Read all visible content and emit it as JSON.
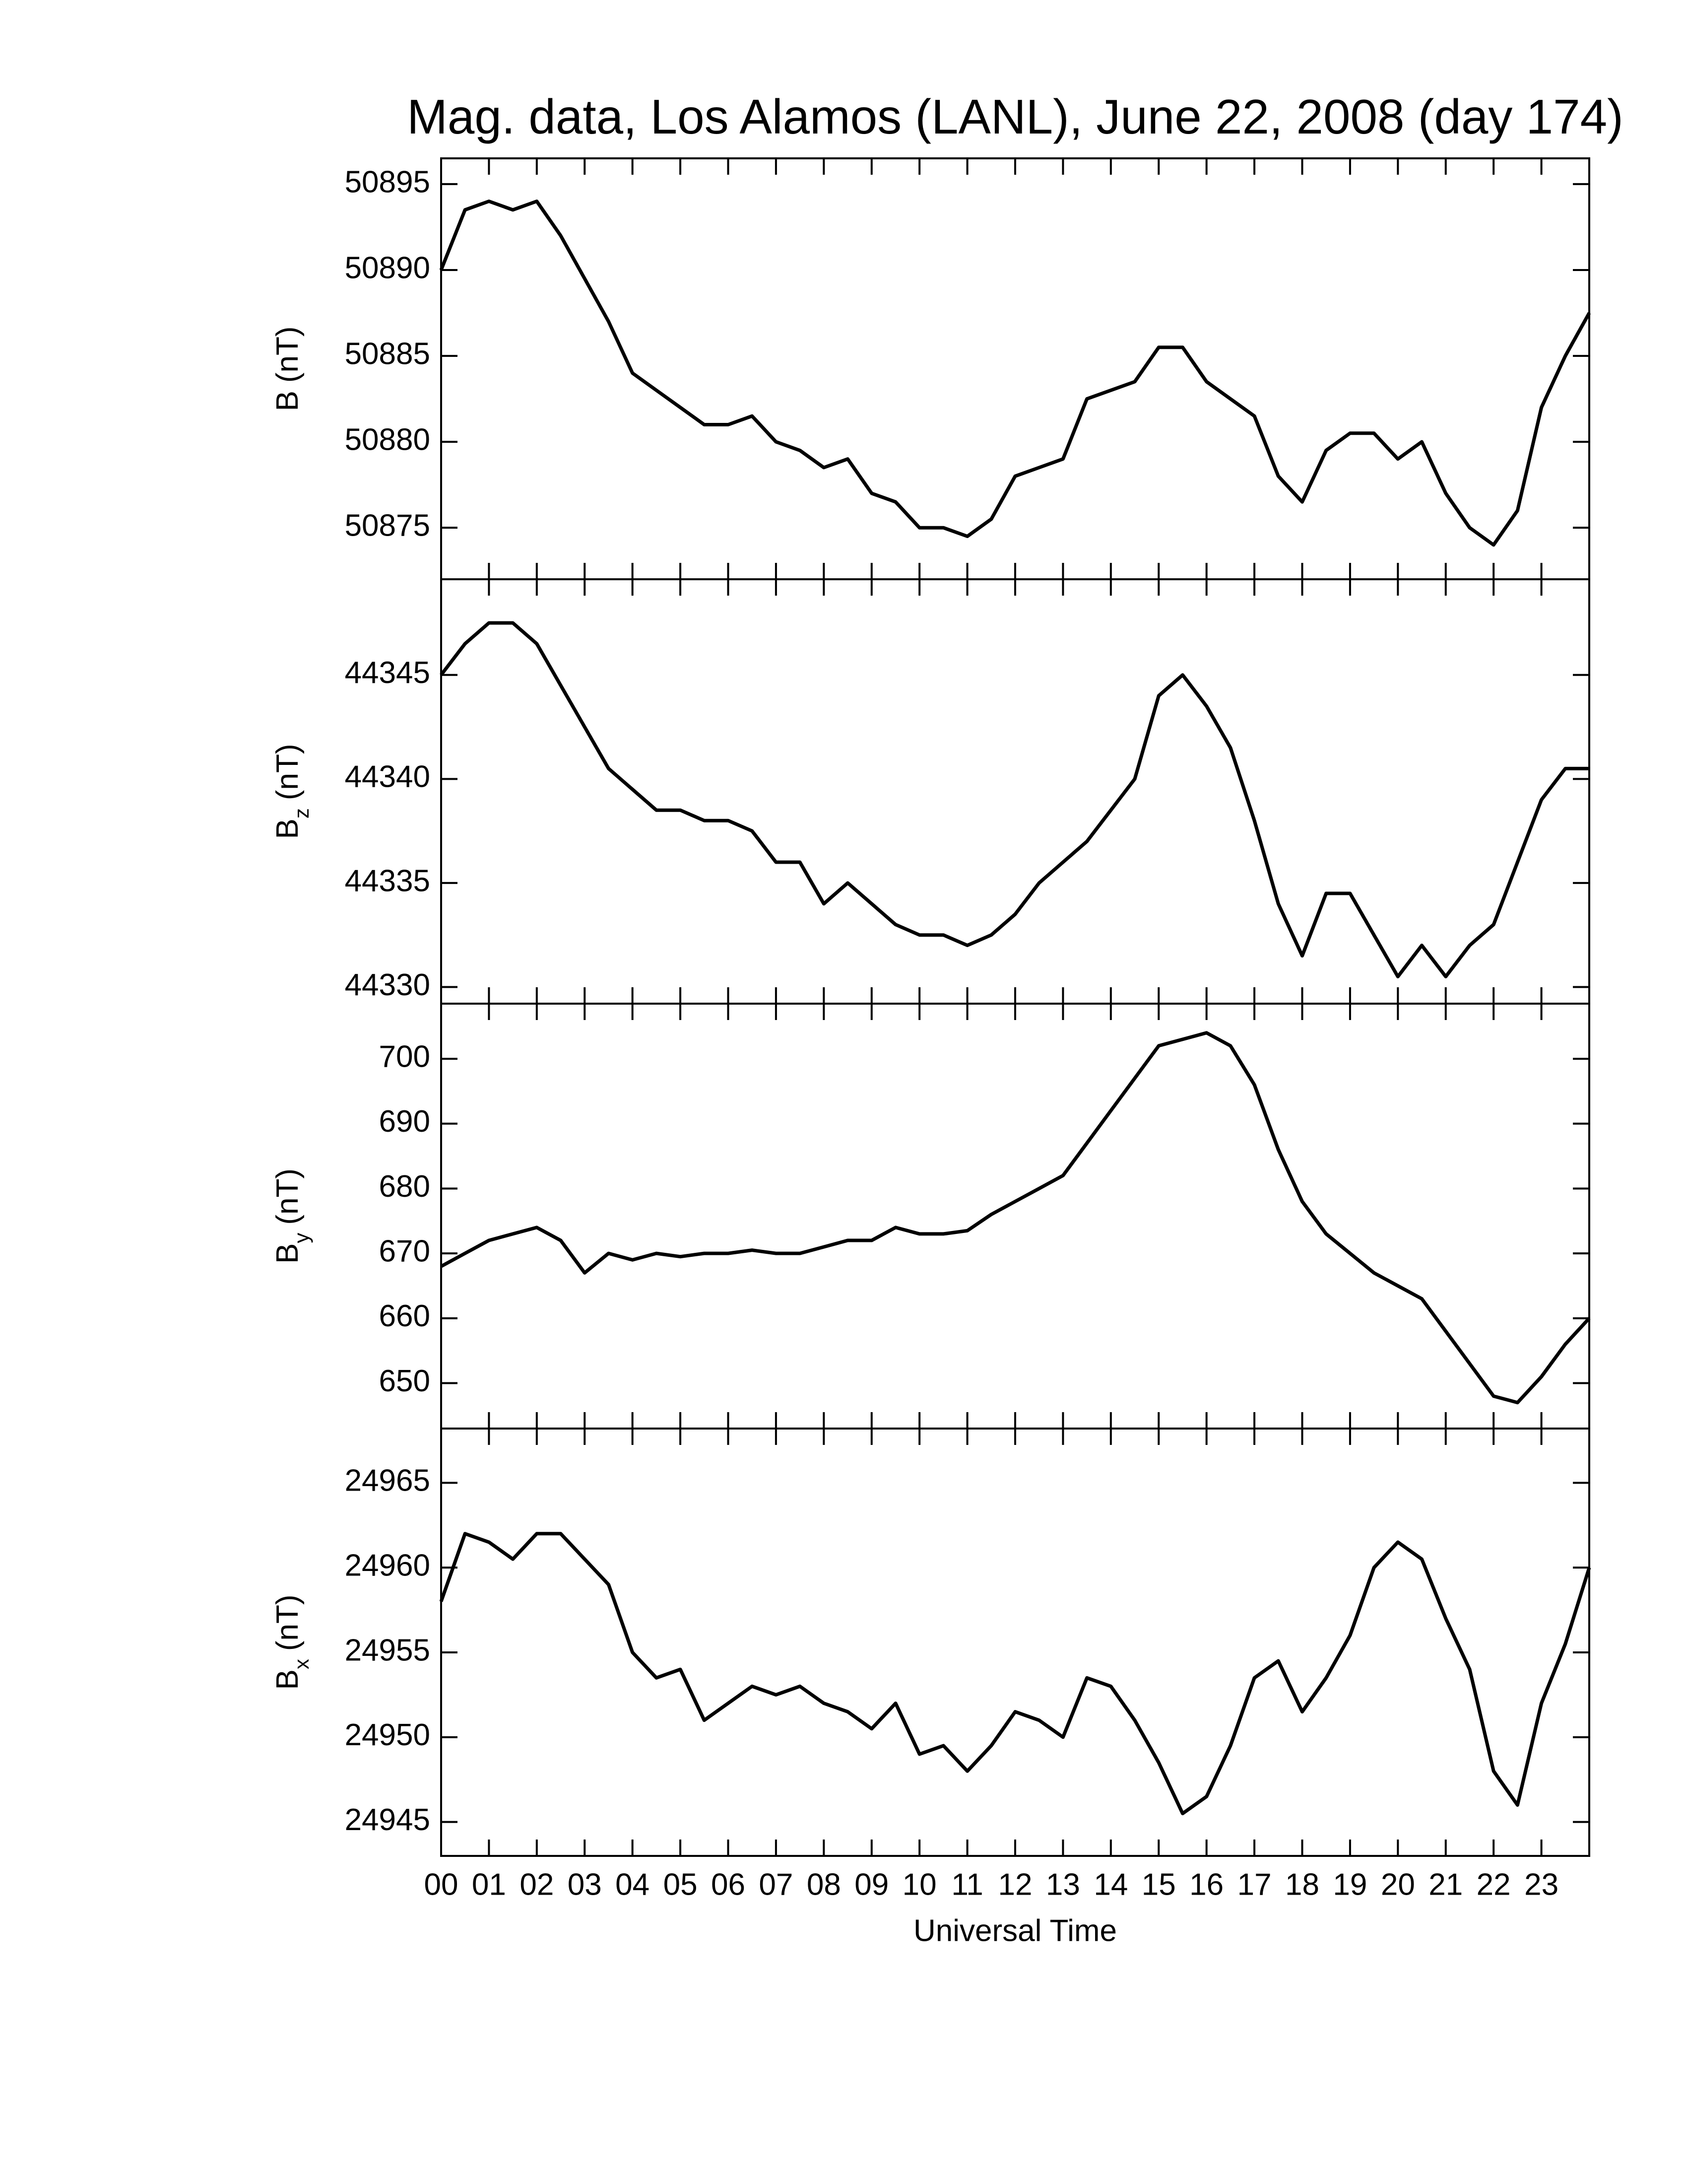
{
  "chart_data": [
    {
      "type": "line",
      "title": "Mag. data, Los Alamos (LANL), June 22, 2008 (day 174)",
      "ylabel": "B",
      "ylabel_unit": "(nT)",
      "xlim": [
        0,
        24
      ],
      "xticks": [
        0,
        1,
        2,
        3,
        4,
        5,
        6,
        7,
        8,
        9,
        10,
        11,
        12,
        13,
        14,
        15,
        16,
        17,
        18,
        19,
        20,
        21,
        22,
        23
      ],
      "ylim": [
        50872,
        50896.5
      ],
      "yticks": [
        50875,
        50880,
        50885,
        50890,
        50895
      ],
      "x": [
        0,
        0.5,
        1,
        1.5,
        2,
        2.5,
        3,
        3.5,
        4,
        4.5,
        5,
        5.5,
        6,
        6.5,
        7,
        7.5,
        8,
        8.5,
        9,
        9.5,
        10,
        10.5,
        11,
        11.5,
        12,
        12.5,
        13,
        13.5,
        14,
        14.5,
        15,
        15.5,
        16,
        16.5,
        17,
        17.5,
        18,
        18.5,
        19,
        19.5,
        20,
        20.5,
        21,
        21.5,
        22,
        22.5,
        23,
        23.5,
        24
      ],
      "series": [
        {
          "color": "#000000",
          "values": [
            50890,
            50893.5,
            50894,
            50893.5,
            50894,
            50892,
            50889.5,
            50887,
            50884,
            50883,
            50882,
            50881,
            50881,
            50881.5,
            50880,
            50879.5,
            50878.5,
            50879,
            50877,
            50876.5,
            50875,
            50875,
            50874.5,
            50875.5,
            50878,
            50878.5,
            50879,
            50882.5,
            50883,
            50883.5,
            50885.5,
            50885.5,
            50883.5,
            50882.5,
            50881.5,
            50878,
            50876.5,
            50879.5,
            50880.5,
            50880.5,
            50879,
            50880,
            50877,
            50875,
            50874,
            50876,
            50882,
            50885,
            50887.5
          ]
        }
      ]
    },
    {
      "type": "line",
      "ylabel": "B",
      "ylabel_sub": "z",
      "ylabel_unit": "(nT)",
      "xlim": [
        0,
        24
      ],
      "xticks": [
        0,
        1,
        2,
        3,
        4,
        5,
        6,
        7,
        8,
        9,
        10,
        11,
        12,
        13,
        14,
        15,
        16,
        17,
        18,
        19,
        20,
        21,
        22,
        23
      ],
      "ylim": [
        44329.2,
        44349.6
      ],
      "yticks": [
        44330,
        44335,
        44340,
        44345
      ],
      "x": [
        0,
        0.5,
        1,
        1.5,
        2,
        2.5,
        3,
        3.5,
        4,
        4.5,
        5,
        5.5,
        6,
        6.5,
        7,
        7.5,
        8,
        8.5,
        9,
        9.5,
        10,
        10.5,
        11,
        11.5,
        12,
        12.5,
        13,
        13.5,
        14,
        14.5,
        15,
        15.5,
        16,
        16.5,
        17,
        17.5,
        18,
        18.5,
        19,
        19.5,
        20,
        20.5,
        21,
        21.5,
        22,
        22.5,
        23,
        23.5,
        24
      ],
      "series": [
        {
          "color": "#000000",
          "values": [
            44345,
            44346.5,
            44347.5,
            44347.5,
            44346.5,
            44344.5,
            44342.5,
            44340.5,
            44339.5,
            44338.5,
            44338.5,
            44338,
            44338,
            44337.5,
            44336,
            44336,
            44334,
            44335,
            44334,
            44333,
            44332.5,
            44332.5,
            44332,
            44332.5,
            44333.5,
            44335,
            44336,
            44337,
            44338.5,
            44340,
            44344,
            44345,
            44343.5,
            44341.5,
            44338,
            44334,
            44331.5,
            44334.5,
            44334.5,
            44332.5,
            44330.5,
            44332,
            44330.5,
            44332,
            44333,
            44336,
            44339,
            44340.5,
            44340.5
          ]
        }
      ]
    },
    {
      "type": "line",
      "ylabel": "B",
      "ylabel_sub": "y",
      "ylabel_unit": "(nT)",
      "xlim": [
        0,
        24
      ],
      "xticks": [
        0,
        1,
        2,
        3,
        4,
        5,
        6,
        7,
        8,
        9,
        10,
        11,
        12,
        13,
        14,
        15,
        16,
        17,
        18,
        19,
        20,
        21,
        22,
        23
      ],
      "ylim": [
        643,
        708.5
      ],
      "yticks": [
        650,
        660,
        670,
        680,
        690,
        700
      ],
      "x": [
        0,
        0.5,
        1,
        1.5,
        2,
        2.5,
        3,
        3.5,
        4,
        4.5,
        5,
        5.5,
        6,
        6.5,
        7,
        7.5,
        8,
        8.5,
        9,
        9.5,
        10,
        10.5,
        11,
        11.5,
        12,
        12.5,
        13,
        13.5,
        14,
        14.5,
        15,
        15.5,
        16,
        16.5,
        17,
        17.5,
        18,
        18.5,
        19,
        19.5,
        20,
        20.5,
        21,
        21.5,
        22,
        22.5,
        23,
        23.5,
        24
      ],
      "series": [
        {
          "color": "#000000",
          "values": [
            668,
            670,
            672,
            673,
            674,
            672,
            667,
            670,
            669,
            670,
            669.5,
            670,
            670,
            670.5,
            670,
            670,
            671,
            672,
            672,
            674,
            673,
            673,
            673.5,
            676,
            678,
            680,
            682,
            687,
            692,
            697,
            702,
            703,
            704,
            702,
            696,
            686,
            678,
            673,
            670,
            667,
            665,
            663,
            658,
            653,
            648,
            647,
            651,
            656,
            660
          ]
        }
      ]
    },
    {
      "type": "line",
      "ylabel": "B",
      "ylabel_sub": "x",
      "ylabel_unit": "(nT)",
      "xlabel": "Universal Time",
      "xlim": [
        0,
        24
      ],
      "xticks": [
        {
          "value": 0,
          "label": "00"
        },
        {
          "value": 1,
          "label": "01"
        },
        {
          "value": 2,
          "label": "02"
        },
        {
          "value": 3,
          "label": "03"
        },
        {
          "value": 4,
          "label": "04"
        },
        {
          "value": 5,
          "label": "05"
        },
        {
          "value": 6,
          "label": "06"
        },
        {
          "value": 7,
          "label": "07"
        },
        {
          "value": 8,
          "label": "08"
        },
        {
          "value": 9,
          "label": "09"
        },
        {
          "value": 10,
          "label": "10"
        },
        {
          "value": 11,
          "label": "11"
        },
        {
          "value": 12,
          "label": "12"
        },
        {
          "value": 13,
          "label": "13"
        },
        {
          "value": 14,
          "label": "14"
        },
        {
          "value": 15,
          "label": "15"
        },
        {
          "value": 16,
          "label": "16"
        },
        {
          "value": 17,
          "label": "17"
        },
        {
          "value": 18,
          "label": "18"
        },
        {
          "value": 19,
          "label": "19"
        },
        {
          "value": 20,
          "label": "20"
        },
        {
          "value": 21,
          "label": "21"
        },
        {
          "value": 22,
          "label": "22"
        },
        {
          "value": 23,
          "label": "23"
        }
      ],
      "ylim": [
        24943,
        24968.2
      ],
      "yticks": [
        24945,
        24950,
        24955,
        24960,
        24965
      ],
      "x": [
        0,
        0.5,
        1,
        1.5,
        2,
        2.5,
        3,
        3.5,
        4,
        4.5,
        5,
        5.5,
        6,
        6.5,
        7,
        7.5,
        8,
        8.5,
        9,
        9.5,
        10,
        10.5,
        11,
        11.5,
        12,
        12.5,
        13,
        13.5,
        14,
        14.5,
        15,
        15.5,
        16,
        16.5,
        17,
        17.5,
        18,
        18.5,
        19,
        19.5,
        20,
        20.5,
        21,
        21.5,
        22,
        22.5,
        23,
        23.5,
        24
      ],
      "series": [
        {
          "color": "#000000",
          "values": [
            24958,
            24962,
            24961.5,
            24960.5,
            24962,
            24962,
            24960.5,
            24959,
            24955,
            24953.5,
            24954,
            24951,
            24952,
            24953,
            24952.5,
            24953,
            24952,
            24951.5,
            24950.5,
            24952,
            24949,
            24949.5,
            24948,
            24949.5,
            24951.5,
            24951,
            24950,
            24953.5,
            24953,
            24951,
            24948.5,
            24945.5,
            24946.5,
            24949.5,
            24953.5,
            24954.5,
            24951.5,
            24953.5,
            24956,
            24960,
            24961.5,
            24960.5,
            24957,
            24954,
            24948,
            24946,
            24952,
            24955.5,
            24960
          ]
        }
      ]
    }
  ]
}
